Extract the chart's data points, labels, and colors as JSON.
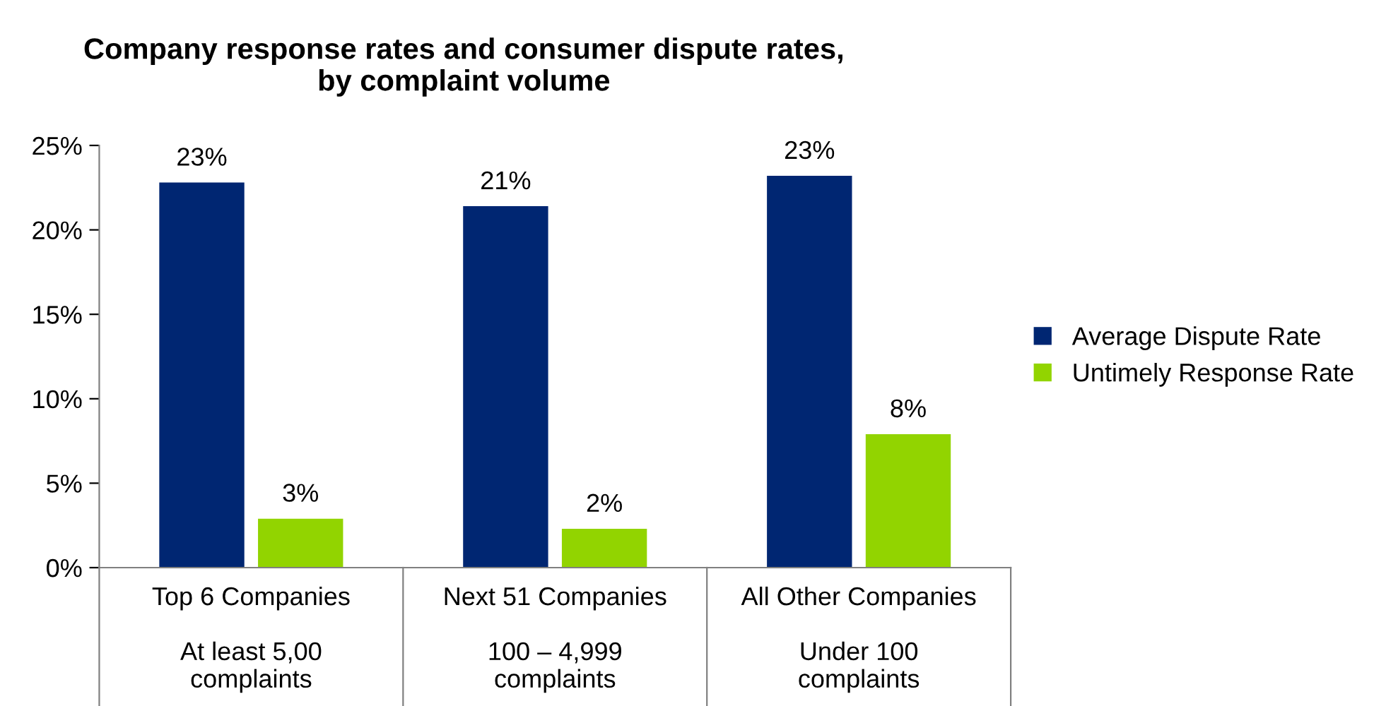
{
  "chart_data": {
    "type": "bar",
    "title": "Company response rates and consumer dispute rates,\nby complaint volume",
    "categories": [
      "Top 6 Companies\n\nAt least 5,00\ncomplaints",
      "Next 51 Companies\n\n100 – 4,999\ncomplaints",
      "All Other Companies\n\nUnder 100\ncomplaints"
    ],
    "series": [
      {
        "name": "Average Dispute Rate",
        "color": "#002672",
        "values": [
          22.8,
          21.4,
          23.2
        ],
        "value_labels": [
          "23%",
          "21%",
          "23%"
        ]
      },
      {
        "name": "Untimely Response Rate",
        "color": "#92d400",
        "values": [
          2.9,
          2.3,
          7.9
        ],
        "value_labels": [
          "3%",
          "2%",
          "8%"
        ]
      }
    ],
    "ylim": [
      0,
      25
    ],
    "yticks": [
      {
        "value": 0,
        "label": "0%"
      },
      {
        "value": 5,
        "label": "5%"
      },
      {
        "value": 10,
        "label": "10%"
      },
      {
        "value": 15,
        "label": "15%"
      },
      {
        "value": 20,
        "label": "20%"
      },
      {
        "value": 25,
        "label": "25%"
      }
    ],
    "grid": false,
    "legend": "right"
  }
}
